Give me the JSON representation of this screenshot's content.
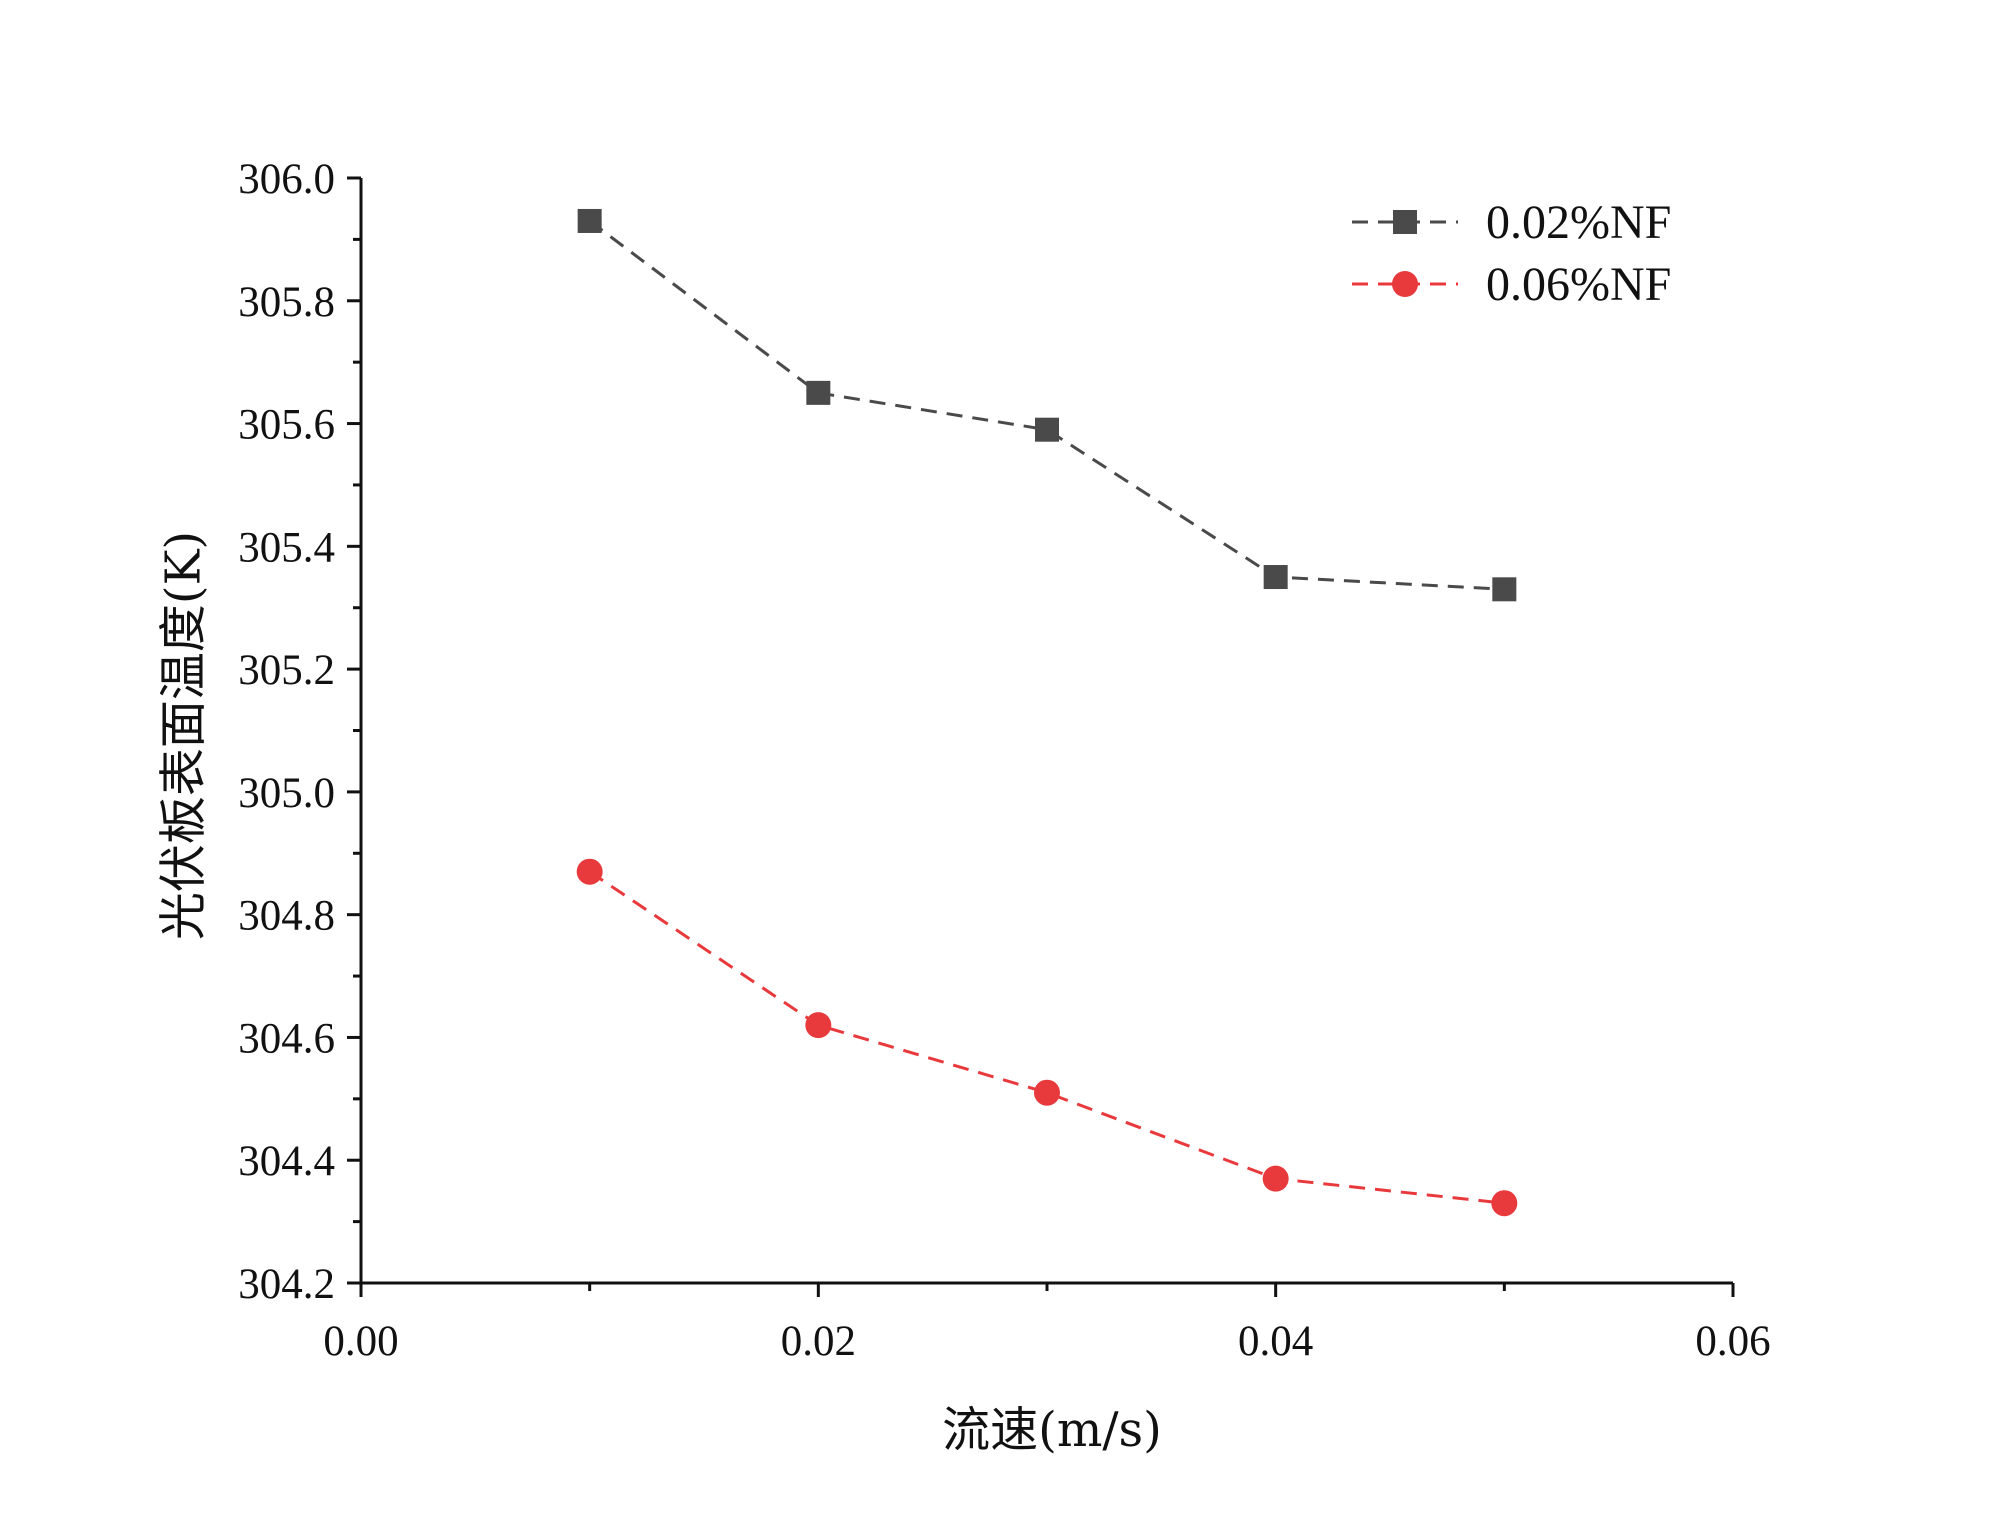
{
  "chart_data": {
    "type": "line",
    "title": "",
    "xlabel": "流速(m/s)",
    "ylabel": "光伏板表面温度(K)",
    "xlim": [
      0.0,
      0.06
    ],
    "ylim": [
      304.2,
      306.0
    ],
    "xticks": [
      0.0,
      0.02,
      0.04,
      0.06
    ],
    "xtick_labels": [
      "0.00",
      "0.02",
      "0.04",
      "0.06"
    ],
    "yticks": [
      304.2,
      304.4,
      304.6,
      304.8,
      305.0,
      305.2,
      305.4,
      305.6,
      305.8,
      306.0
    ],
    "ytick_labels": [
      "304.2",
      "304.4",
      "304.6",
      "304.8",
      "305.0",
      "305.2",
      "305.4",
      "305.6",
      "305.8",
      "306.0"
    ],
    "grid": false,
    "legend_position": "top-right",
    "x": [
      0.01,
      0.02,
      0.03,
      0.04,
      0.05
    ],
    "series": [
      {
        "name": "0.02%NF",
        "values": [
          305.93,
          305.65,
          305.59,
          305.35,
          305.33
        ],
        "color": "#4a4a4a",
        "marker": "square",
        "line_style": "dashed"
      },
      {
        "name": "0.06%NF",
        "values": [
          304.87,
          304.62,
          304.51,
          304.37,
          304.33
        ],
        "color": "#e8393c",
        "marker": "circle",
        "line_style": "dashed"
      }
    ]
  }
}
